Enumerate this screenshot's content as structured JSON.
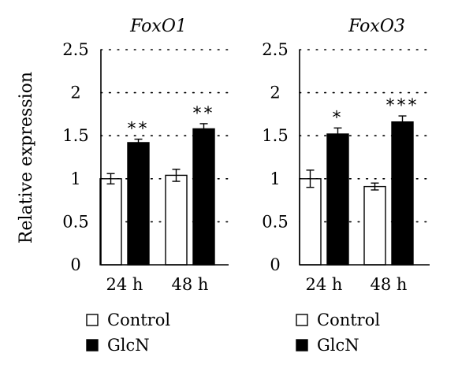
{
  "chart_data": [
    {
      "type": "bar",
      "title": "FoxO1",
      "ylabel": "Relative expression",
      "categories": [
        "24 h",
        "48 h"
      ],
      "ylim": [
        0,
        2.5
      ],
      "yticks": [
        "0",
        "0.5",
        "1",
        "1.5",
        "2",
        "2.5"
      ],
      "grid": true,
      "series": [
        {
          "name": "Control",
          "values": [
            1.0,
            1.04
          ],
          "errors": [
            0.06,
            0.07
          ],
          "color": "#ffffff"
        },
        {
          "name": "GlcN",
          "values": [
            1.42,
            1.58
          ],
          "errors": [
            0.04,
            0.06
          ],
          "color": "#000000"
        }
      ],
      "annotations": [
        {
          "category": "24 h",
          "series": "GlcN",
          "text": "**"
        },
        {
          "category": "48 h",
          "series": "GlcN",
          "text": "**"
        }
      ],
      "legend": [
        "Control",
        "GlcN"
      ],
      "legend_position": "bottom"
    },
    {
      "type": "bar",
      "title": "FoxO3",
      "ylabel": "",
      "categories": [
        "24 h",
        "48 h"
      ],
      "ylim": [
        0,
        2.5
      ],
      "yticks": [
        "0",
        "0.5",
        "1",
        "1.5",
        "2",
        "2.5"
      ],
      "grid": true,
      "series": [
        {
          "name": "Control",
          "values": [
            1.0,
            0.91
          ],
          "errors": [
            0.1,
            0.04
          ],
          "color": "#ffffff"
        },
        {
          "name": "GlcN",
          "values": [
            1.52,
            1.66
          ],
          "errors": [
            0.07,
            0.07
          ],
          "color": "#000000"
        }
      ],
      "annotations": [
        {
          "category": "24 h",
          "series": "GlcN",
          "text": "*"
        },
        {
          "category": "48 h",
          "series": "GlcN",
          "text": "***"
        }
      ],
      "legend": [
        "Control",
        "GlcN"
      ],
      "legend_position": "bottom"
    }
  ]
}
